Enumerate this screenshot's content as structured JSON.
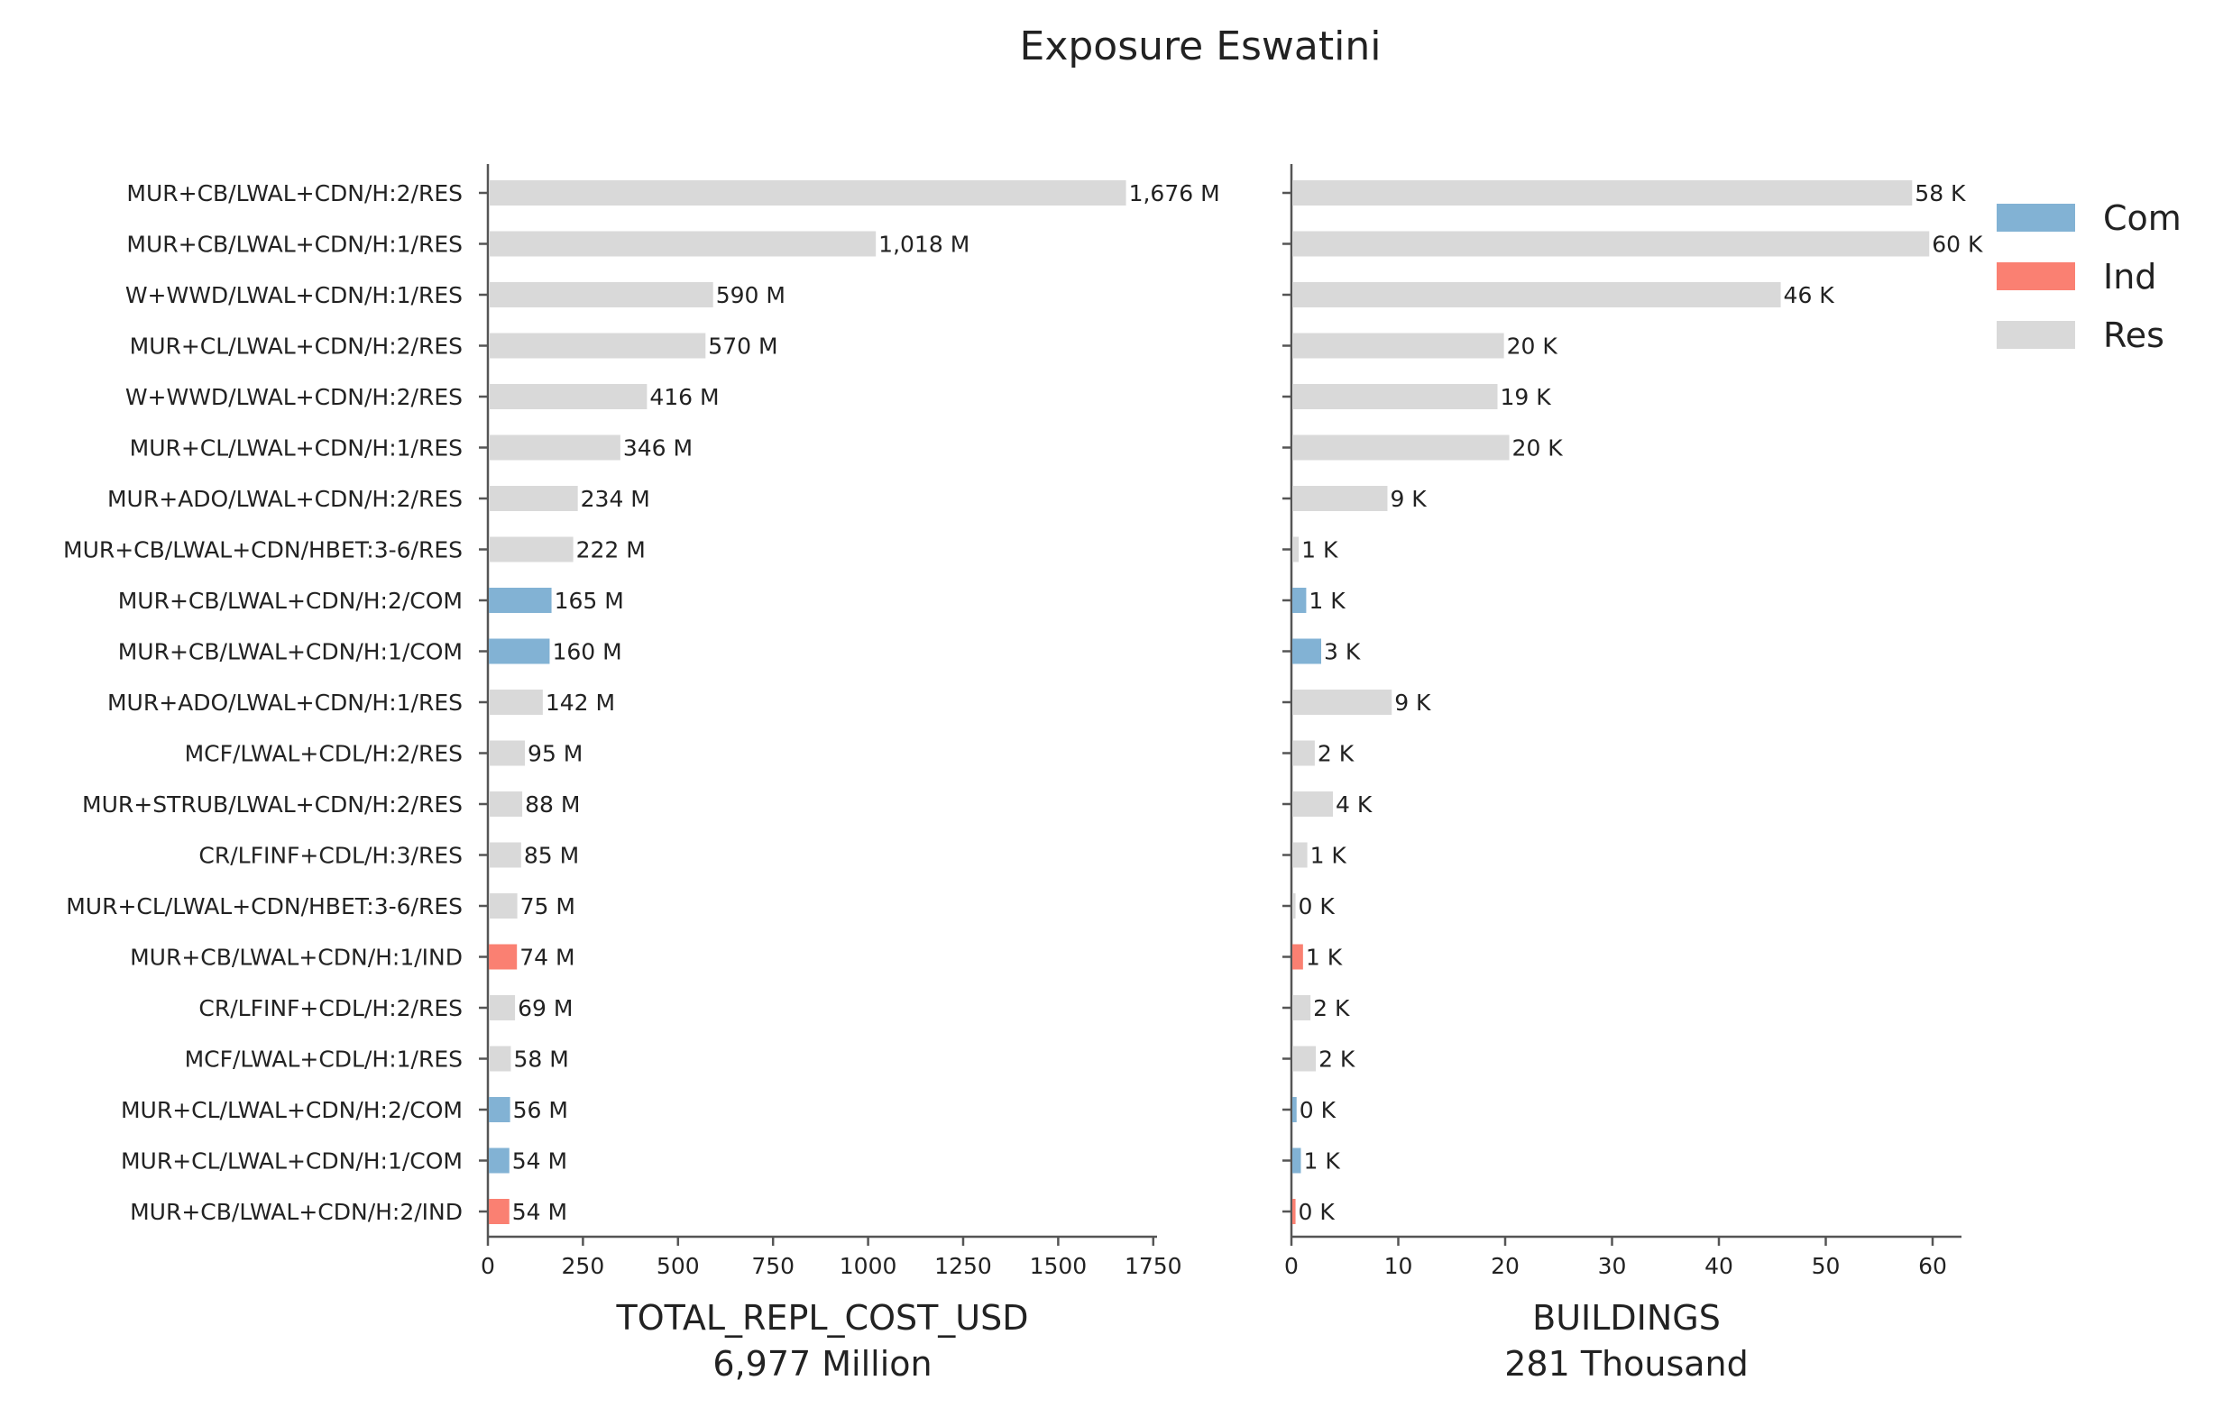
{
  "chart_data": {
    "type": "bar",
    "orientation": "horizontal",
    "title": "Exposure Eswatini",
    "categories": [
      "MUR+CB/LWAL+CDN/H:2/RES",
      "MUR+CB/LWAL+CDN/H:1/RES",
      "W+WWD/LWAL+CDN/H:1/RES",
      "MUR+CL/LWAL+CDN/H:2/RES",
      "W+WWD/LWAL+CDN/H:2/RES",
      "MUR+CL/LWAL+CDN/H:1/RES",
      "MUR+ADO/LWAL+CDN/H:2/RES",
      "MUR+CB/LWAL+CDN/HBET:3-6/RES",
      "MUR+CB/LWAL+CDN/H:2/COM",
      "MUR+CB/LWAL+CDN/H:1/COM",
      "MUR+ADO/LWAL+CDN/H:1/RES",
      "MCF/LWAL+CDL/H:2/RES",
      "MUR+STRUB/LWAL+CDN/H:2/RES",
      "CR/LFINF+CDL/H:3/RES",
      "MUR+CL/LWAL+CDN/HBET:3-6/RES",
      "MUR+CB/LWAL+CDN/H:1/IND",
      "CR/LFINF+CDL/H:2/RES",
      "MCF/LWAL+CDL/H:1/RES",
      "MUR+CL/LWAL+CDN/H:2/COM",
      "MUR+CL/LWAL+CDN/H:1/COM",
      "MUR+CB/LWAL+CDN/H:2/IND"
    ],
    "occupancy": [
      "Res",
      "Res",
      "Res",
      "Res",
      "Res",
      "Res",
      "Res",
      "Res",
      "Com",
      "Com",
      "Res",
      "Res",
      "Res",
      "Res",
      "Res",
      "Ind",
      "Res",
      "Res",
      "Com",
      "Com",
      "Ind"
    ],
    "panels": [
      {
        "xlabel": "TOTAL_REPL_COST_USD",
        "xsublabel": "6,977 Million",
        "xlim": [
          0,
          1760
        ],
        "xticks": [
          0,
          250,
          500,
          750,
          1000,
          1250,
          1500,
          1750
        ],
        "values": [
          1676,
          1018,
          590,
          570,
          416,
          346,
          234,
          222,
          165,
          160,
          142,
          95,
          88,
          85,
          75,
          74,
          69,
          58,
          56,
          54,
          54
        ],
        "labels": [
          "1,676 M",
          "1,018 M",
          "590 M",
          "570 M",
          "416 M",
          "346 M",
          "234 M",
          "222 M",
          "165 M",
          "160 M",
          "142 M",
          "95 M",
          "88 M",
          "85 M",
          "75 M",
          "74 M",
          "69 M",
          "58 M",
          "56 M",
          "54 M",
          "54 M"
        ]
      },
      {
        "xlabel": "BUILDINGS",
        "xsublabel": "281 Thousand",
        "xlim": [
          0,
          62.7
        ],
        "xticks": [
          0,
          10,
          20,
          30,
          40,
          50,
          60
        ],
        "values": [
          58,
          59.6,
          45.7,
          19.8,
          19.2,
          20.3,
          8.9,
          0.6,
          1.3,
          2.7,
          9.3,
          2.1,
          3.8,
          1.4,
          0.3,
          1.0,
          1.7,
          2.2,
          0.4,
          0.8,
          0.3
        ],
        "labels": [
          "58 K",
          "60 K",
          "46 K",
          "20 K",
          "19 K",
          "20 K",
          "9 K",
          "1 K",
          "1 K",
          "3 K",
          "9 K",
          "2 K",
          "4 K",
          "1 K",
          "0 K",
          "1 K",
          "2 K",
          "2 K",
          "0 K",
          "1 K",
          "0 K"
        ]
      }
    ],
    "legend": {
      "position": "top-right",
      "items": [
        {
          "name": "Com",
          "color": "#82b2d4"
        },
        {
          "name": "Ind",
          "color": "#fa8072"
        },
        {
          "name": "Res",
          "color": "#d9d9d9"
        }
      ]
    },
    "grid": false
  }
}
